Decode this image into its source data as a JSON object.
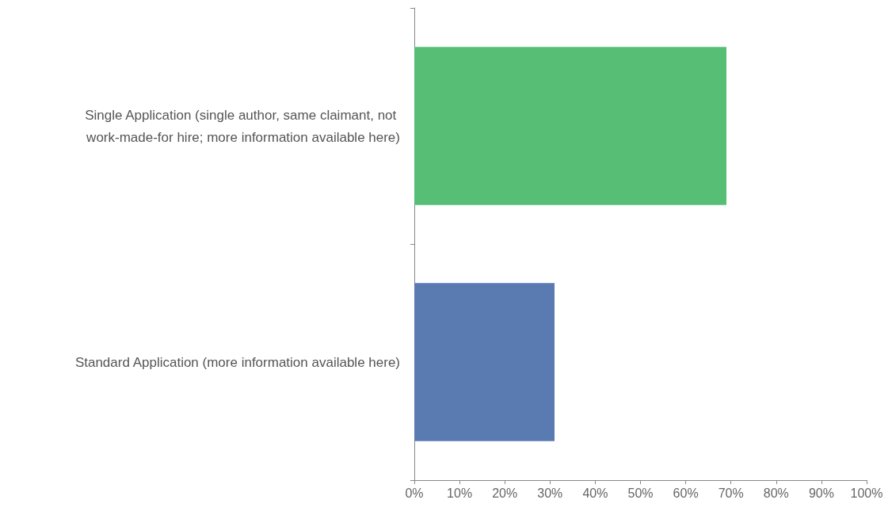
{
  "chart_data": {
    "type": "bar",
    "orientation": "horizontal",
    "categories": [
      "Single Application (single author, same claimant, not work-made-for hire; more information available here)",
      "Standard Application (more information available here)"
    ],
    "values": [
      69,
      31
    ],
    "colors": [
      "#57be75",
      "#5a7ab2"
    ],
    "xlim": [
      0,
      100
    ],
    "xticks": [
      {
        "value": 0,
        "label": "0%"
      },
      {
        "value": 10,
        "label": "10%"
      },
      {
        "value": 20,
        "label": "20%"
      },
      {
        "value": 30,
        "label": "30%"
      },
      {
        "value": 40,
        "label": "40%"
      },
      {
        "value": 50,
        "label": "50%"
      },
      {
        "value": 60,
        "label": "60%"
      },
      {
        "value": 70,
        "label": "70%"
      },
      {
        "value": 80,
        "label": "80%"
      },
      {
        "value": 90,
        "label": "90%"
      },
      {
        "value": 100,
        "label": "100%"
      }
    ],
    "grid": false
  }
}
